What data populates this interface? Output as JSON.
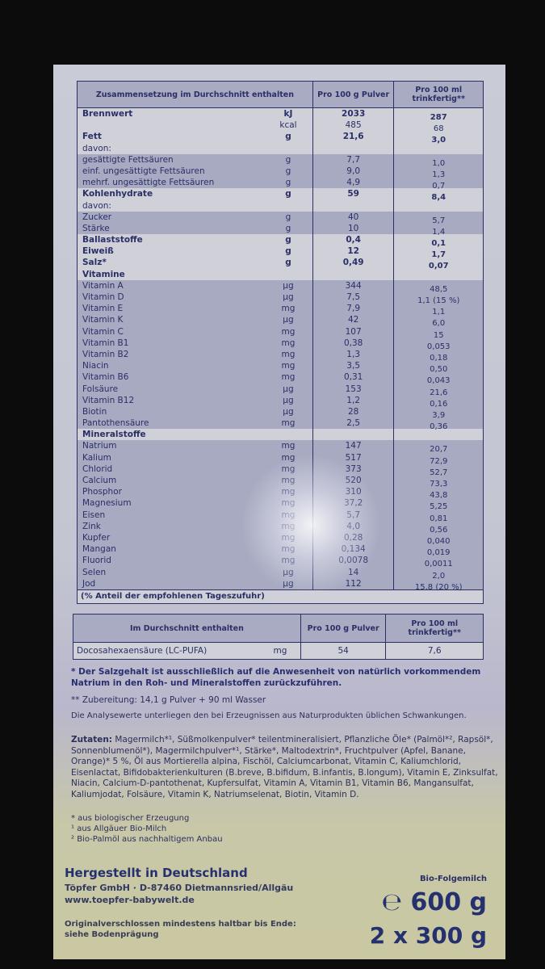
{
  "nutrition_table": {
    "header": {
      "composition": "Zusammensetzung im Durchschnitt enthalten",
      "per_powder": "Pro 100 g Pulver",
      "per_ready": "Pro 100 ml trinkfertig**"
    },
    "rows": [
      {
        "label": "Brennwert",
        "unit": "kJ",
        "pulver": "2033",
        "trinkfertig": "287",
        "bold": true,
        "shade": false
      },
      {
        "label": "",
        "unit": "kcal",
        "pulver": "485",
        "trinkfertig": "68",
        "bold": false,
        "shade": false
      },
      {
        "label": "Fett",
        "unit": "g",
        "pulver": "21,6",
        "trinkfertig": "3,0",
        "bold": true,
        "shade": false
      },
      {
        "label": "davon:",
        "unit": "",
        "pulver": "",
        "trinkfertig": "",
        "bold": false,
        "shade": false
      },
      {
        "label": "gesättigte Fettsäuren",
        "unit": "g",
        "pulver": "7,7",
        "trinkfertig": "1,0",
        "bold": false,
        "shade": true
      },
      {
        "label": "einf. ungesättigte Fettsäuren",
        "unit": "g",
        "pulver": "9,0",
        "trinkfertig": "1,3",
        "bold": false,
        "shade": true
      },
      {
        "label": "mehrf. ungesättigte Fettsäuren",
        "unit": "g",
        "pulver": "4,9",
        "trinkfertig": "0,7",
        "bold": false,
        "shade": true
      },
      {
        "label": "Kohlenhydrate",
        "unit": "g",
        "pulver": "59",
        "trinkfertig": "8,4",
        "bold": true,
        "shade": false
      },
      {
        "label": "davon:",
        "unit": "",
        "pulver": "",
        "trinkfertig": "",
        "bold": false,
        "shade": false
      },
      {
        "label": "Zucker",
        "unit": "g",
        "pulver": "40",
        "trinkfertig": "5,7",
        "bold": false,
        "shade": true
      },
      {
        "label": "Stärke",
        "unit": "g",
        "pulver": "10",
        "trinkfertig": "1,4",
        "bold": false,
        "shade": true
      },
      {
        "label": "Ballaststoffe",
        "unit": "g",
        "pulver": "0,4",
        "trinkfertig": "0,1",
        "bold": true,
        "shade": false
      },
      {
        "label": "Eiweiß",
        "unit": "g",
        "pulver": "12",
        "trinkfertig": "1,7",
        "bold": true,
        "shade": false
      },
      {
        "label": "Salz*",
        "unit": "g",
        "pulver": "0,49",
        "trinkfertig": "0,07",
        "bold": true,
        "shade": false
      },
      {
        "label": "Vitamine",
        "unit": "",
        "pulver": "",
        "trinkfertig": "",
        "bold": true,
        "shade": false
      },
      {
        "label": "Vitamin A",
        "unit": "µg",
        "pulver": "344",
        "trinkfertig": "48,5",
        "bold": false,
        "shade": true
      },
      {
        "label": "Vitamin D",
        "unit": "µg",
        "pulver": "7,5",
        "trinkfertig": "1,1 (15 %)",
        "bold": false,
        "shade": true
      },
      {
        "label": "Vitamin E",
        "unit": "mg",
        "pulver": "7,9",
        "trinkfertig": "1,1",
        "bold": false,
        "shade": true
      },
      {
        "label": "Vitamin K",
        "unit": "µg",
        "pulver": "42",
        "trinkfertig": "6,0",
        "bold": false,
        "shade": true
      },
      {
        "label": "Vitamin C",
        "unit": "mg",
        "pulver": "107",
        "trinkfertig": "15",
        "bold": false,
        "shade": true
      },
      {
        "label": "Vitamin B1",
        "unit": "mg",
        "pulver": "0,38",
        "trinkfertig": "0,053",
        "bold": false,
        "shade": true
      },
      {
        "label": "Vitamin B2",
        "unit": "mg",
        "pulver": "1,3",
        "trinkfertig": "0,18",
        "bold": false,
        "shade": true
      },
      {
        "label": "Niacin",
        "unit": "mg",
        "pulver": "3,5",
        "trinkfertig": "0,50",
        "bold": false,
        "shade": true
      },
      {
        "label": "Vitamin B6",
        "unit": "mg",
        "pulver": "0,31",
        "trinkfertig": "0,043",
        "bold": false,
        "shade": true
      },
      {
        "label": "Folsäure",
        "unit": "µg",
        "pulver": "153",
        "trinkfertig": "21,6",
        "bold": false,
        "shade": true
      },
      {
        "label": "Vitamin B12",
        "unit": "µg",
        "pulver": "1,2",
        "trinkfertig": "0,16",
        "bold": false,
        "shade": true
      },
      {
        "label": "Biotin",
        "unit": "µg",
        "pulver": "28",
        "trinkfertig": "3,9",
        "bold": false,
        "shade": true
      },
      {
        "label": "Pantothensäure",
        "unit": "mg",
        "pulver": "2,5",
        "trinkfertig": "0,36",
        "bold": false,
        "shade": true
      },
      {
        "label": "Mineralstoffe",
        "unit": "",
        "pulver": "",
        "trinkfertig": "",
        "bold": true,
        "shade": false
      },
      {
        "label": "Natrium",
        "unit": "mg",
        "pulver": "147",
        "trinkfertig": "20,7",
        "bold": false,
        "shade": true
      },
      {
        "label": "Kalium",
        "unit": "mg",
        "pulver": "517",
        "trinkfertig": "72,9",
        "bold": false,
        "shade": true
      },
      {
        "label": "Chlorid",
        "unit": "mg",
        "pulver": "373",
        "trinkfertig": "52,7",
        "bold": false,
        "shade": true
      },
      {
        "label": "Calcium",
        "unit": "mg",
        "pulver": "520",
        "trinkfertig": "73,3",
        "bold": false,
        "shade": true
      },
      {
        "label": "Phosphor",
        "unit": "mg",
        "pulver": "310",
        "trinkfertig": "43,8",
        "bold": false,
        "shade": true
      },
      {
        "label": "Magnesium",
        "unit": "mg",
        "pulver": "37,2",
        "trinkfertig": "5,25",
        "bold": false,
        "shade": true
      },
      {
        "label": "Eisen",
        "unit": "mg",
        "pulver": "5,7",
        "trinkfertig": "0,81",
        "bold": false,
        "shade": true
      },
      {
        "label": "Zink",
        "unit": "mg",
        "pulver": "4,0",
        "trinkfertig": "0,56",
        "bold": false,
        "shade": true
      },
      {
        "label": "Kupfer",
        "unit": "mg",
        "pulver": "0,28",
        "trinkfertig": "0,040",
        "bold": false,
        "shade": true
      },
      {
        "label": "Mangan",
        "unit": "mg",
        "pulver": "0,134",
        "trinkfertig": "0,019",
        "bold": false,
        "shade": true
      },
      {
        "label": "Fluorid",
        "unit": "mg",
        "pulver": "0,0078",
        "trinkfertig": "0,0011",
        "bold": false,
        "shade": true
      },
      {
        "label": "Selen",
        "unit": "µg",
        "pulver": "14",
        "trinkfertig": "2,0",
        "bold": false,
        "shade": true
      },
      {
        "label": "Jod",
        "unit": "µg",
        "pulver": "112",
        "trinkfertig": "15,8 (20 %)",
        "bold": false,
        "shade": true
      }
    ],
    "footnote": "(% Anteil der empfohlenen Tageszufuhr)"
  },
  "dha_table": {
    "header": {
      "composition": "Im Durchschnitt enthalten",
      "per_powder": "Pro 100 g Pulver",
      "per_ready": "Pro 100 ml trinkfertig**"
    },
    "row": {
      "label": "Docosahexaensäure (LC-PUFA)",
      "unit": "mg",
      "pulver": "54",
      "trinkfertig": "7,6"
    }
  },
  "notes": {
    "salt": "* Der Salzgehalt ist ausschließlich auf die Anwesenheit von natürlich vorkommendem Natrium in den Roh- und Mineralstoffen zurückzuführen.",
    "preparation": "** Zubereitung: 14,1 g Pulver + 90 ml Wasser",
    "analysis": "Die Analysewerte unterliegen den bei Erzeugnissen aus Naturprodukten üblichen Schwankungen."
  },
  "ingredients": {
    "label": "Zutaten:",
    "text": " Magermilch*¹, Süßmolkenpulver* teilentmineralisiert, Pflanzliche Öle* (Palmöl*², Rapsöl*, Sonnenblumenöl*), Magermilchpulver*¹, Stärke*, Maltodextrin*, Fruchtpulver (Apfel, Banane, Orange)* 5 %, Öl aus Mortierella alpina, Fischöl, Calciumcarbonat, Vitamin C, Kaliumchlorid, Eisenlactat, Bifidobakterienkulturen (B.breve, B.bifidum, B.infantis, B.longum), Vitamin E, Zinksulfat, Niacin, Calcium-D-pantothenat, Kupfersulfat, Vitamin A, Vitamin B1, Vitamin B6, Mangansulfat, Kaliumjodat, Folsäure, Vitamin K, Natriumselenat, Biotin, Vitamin D."
  },
  "legend": [
    "* aus biologischer Erzeugung",
    "¹ aus Allgäuer Bio-Milch",
    "² Bio-Palmöl aus nachhaltigem Anbau"
  ],
  "manufacturer": {
    "made_in": "Hergestellt in Deutschland",
    "address": "Töpfer GmbH · D-87460 Dietmannsried/Allgäu",
    "website": "www.toepfer-babywelt.de",
    "best_before": "Originalverschlossen mindestens haltbar bis Ende:",
    "best_before_ref": "siehe Bodenprägung"
  },
  "product": {
    "name": "Bio-Folgemilch",
    "net_weight": "℮ 600 g",
    "packs": "2 x 300 g"
  },
  "colors": {
    "ink": "#2a2f66",
    "row_shade": "#a7aac1",
    "row_plain": "#cfd0d8",
    "background": "#0d0c0c"
  }
}
